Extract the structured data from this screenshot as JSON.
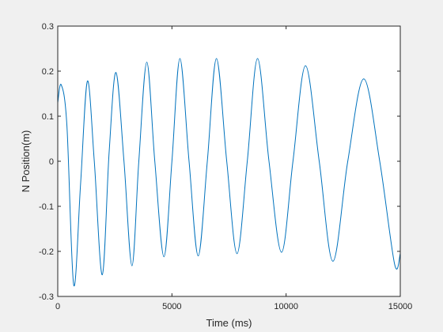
{
  "chart_data": {
    "type": "line",
    "title": "",
    "xlabel": "Time (ms)",
    "ylabel": "N Position(m)",
    "xlim": [
      0,
      15000
    ],
    "ylim": [
      -0.3,
      0.3
    ],
    "x_ticks": [
      0,
      5000,
      10000,
      15000
    ],
    "x_tick_labels": [
      "0",
      "5000",
      "10000",
      "15000"
    ],
    "y_ticks": [
      -0.3,
      -0.2,
      -0.1,
      0,
      0.1,
      0.2,
      0.3
    ],
    "y_tick_labels": [
      "-0.3",
      "-0.2",
      "-0.1",
      "0",
      "0.1",
      "0.2",
      "0.3"
    ],
    "grid": false,
    "legend": false,
    "series": [
      {
        "color": "#0072bd",
        "points": [
          [
            0,
            0.13
          ],
          [
            150,
            0.17
          ],
          [
            400,
            0.08
          ],
          [
            700,
            -0.275
          ],
          [
            1000,
            -0.05
          ],
          [
            1300,
            0.178
          ],
          [
            1600,
            0.0
          ],
          [
            1950,
            -0.252
          ],
          [
            2250,
            0.02
          ],
          [
            2550,
            0.197
          ],
          [
            2900,
            0.0
          ],
          [
            3250,
            -0.232
          ],
          [
            3550,
            0.0
          ],
          [
            3900,
            0.22
          ],
          [
            4250,
            0.0
          ],
          [
            4650,
            -0.212
          ],
          [
            5000,
            0.0
          ],
          [
            5350,
            0.228
          ],
          [
            5750,
            0.0
          ],
          [
            6150,
            -0.21
          ],
          [
            6550,
            0.0
          ],
          [
            6950,
            0.228
          ],
          [
            7400,
            0.0
          ],
          [
            7850,
            -0.205
          ],
          [
            8300,
            0.0
          ],
          [
            8750,
            0.228
          ],
          [
            9250,
            0.0
          ],
          [
            9800,
            -0.202
          ],
          [
            10300,
            0.0
          ],
          [
            10850,
            0.212
          ],
          [
            11450,
            0.0
          ],
          [
            12050,
            -0.222
          ],
          [
            12700,
            0.0
          ],
          [
            13400,
            0.183
          ],
          [
            14100,
            0.0
          ],
          [
            14750,
            -0.228
          ],
          [
            15000,
            -0.205
          ]
        ]
      }
    ]
  }
}
